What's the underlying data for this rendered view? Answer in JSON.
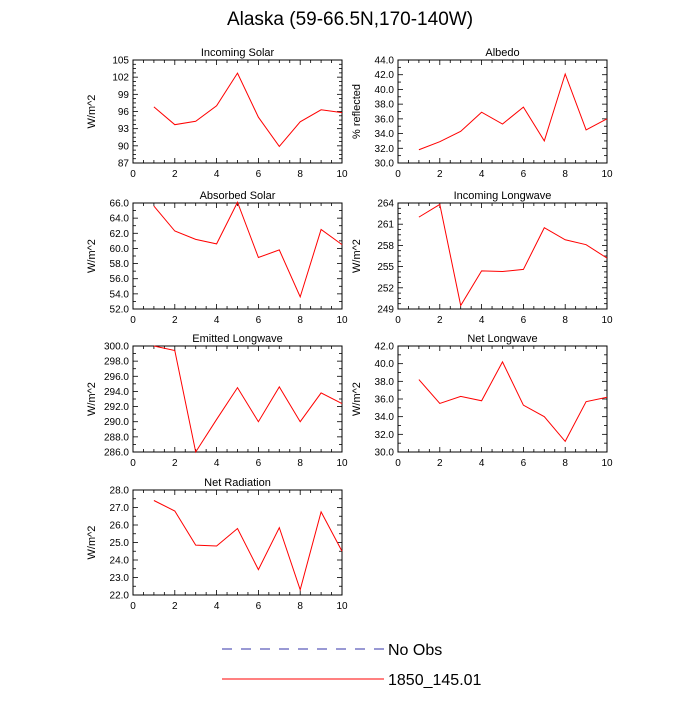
{
  "figure": {
    "title": "Alaska (59-66.5N,170-140W)"
  },
  "colors": {
    "model_line": "#ff0000",
    "obs_line": "#3333aa",
    "axis": "#000000"
  },
  "legend": {
    "placement": "bottom-center",
    "entries": [
      {
        "label": "No Obs",
        "style": "dashed",
        "color": "#3333aa"
      },
      {
        "label": "1850_145.01",
        "style": "solid",
        "color": "#ff0000"
      }
    ]
  },
  "chart_data": [
    {
      "type": "line",
      "title": "Incoming Solar",
      "xlabel": "",
      "ylabel": "W/m^2",
      "xlim": [
        0,
        10
      ],
      "xticks": [
        0,
        2,
        4,
        6,
        8,
        10
      ],
      "ylim": [
        87,
        105
      ],
      "yticks": [
        87,
        90,
        93,
        96,
        99,
        102,
        105
      ],
      "ytick_decimals": 0,
      "yminor": 4,
      "series": [
        {
          "name": "1850_145.01",
          "x": [
            1,
            2,
            3,
            4,
            5,
            6,
            7,
            8,
            9,
            10
          ],
          "values": [
            96.8,
            93.7,
            94.3,
            97.0,
            102.7,
            95.0,
            89.9,
            94.2,
            96.3,
            95.8
          ]
        }
      ]
    },
    {
      "type": "line",
      "title": "Albedo",
      "xlabel": "",
      "ylabel": "% reflected",
      "xlim": [
        0,
        10
      ],
      "xticks": [
        0,
        2,
        4,
        6,
        8,
        10
      ],
      "ylim": [
        30,
        44
      ],
      "yticks": [
        30,
        32,
        34,
        36,
        38,
        40,
        42,
        44
      ],
      "ytick_decimals": 1,
      "yminor": 2,
      "series": [
        {
          "name": "1850_145.01",
          "x": [
            1,
            2,
            3,
            4,
            5,
            6,
            7,
            8,
            9,
            10
          ],
          "values": [
            31.8,
            32.9,
            34.3,
            36.9,
            35.3,
            37.6,
            33.0,
            42.1,
            34.5,
            36.0
          ]
        }
      ]
    },
    {
      "type": "line",
      "title": "Absorbed Solar",
      "xlabel": "",
      "ylabel": "W/m^2",
      "xlim": [
        0,
        10
      ],
      "xticks": [
        0,
        2,
        4,
        6,
        8,
        10
      ],
      "ylim": [
        52,
        66
      ],
      "yticks": [
        52,
        54,
        56,
        58,
        60,
        62,
        64,
        66
      ],
      "ytick_decimals": 1,
      "yminor": 2,
      "series": [
        {
          "name": "1850_145.01",
          "x": [
            1,
            2,
            3,
            4,
            5,
            6,
            7,
            8,
            9,
            10
          ],
          "values": [
            65.6,
            62.3,
            61.2,
            60.6,
            66.1,
            58.8,
            59.8,
            53.6,
            62.5,
            60.5
          ]
        }
      ]
    },
    {
      "type": "line",
      "title": "Incoming Longwave",
      "xlabel": "",
      "ylabel": "W/m^2",
      "xlim": [
        0,
        10
      ],
      "xticks": [
        0,
        2,
        4,
        6,
        8,
        10
      ],
      "ylim": [
        249,
        264
      ],
      "yticks": [
        249,
        252,
        255,
        258,
        261,
        264
      ],
      "ytick_decimals": 0,
      "yminor": 4,
      "series": [
        {
          "name": "1850_145.01",
          "x": [
            1,
            2,
            3,
            4,
            5,
            6,
            7,
            8,
            9,
            10
          ],
          "values": [
            262.0,
            263.8,
            249.5,
            254.4,
            254.3,
            254.6,
            260.5,
            258.8,
            258.1,
            256.2
          ]
        }
      ]
    },
    {
      "type": "line",
      "title": "Emitted Longwave",
      "xlabel": "",
      "ylabel": "W/m^2",
      "xlim": [
        0,
        10
      ],
      "xticks": [
        0,
        2,
        4,
        6,
        8,
        10
      ],
      "ylim": [
        286,
        300
      ],
      "yticks": [
        286,
        288,
        290,
        292,
        294,
        296,
        298,
        300
      ],
      "ytick_decimals": 1,
      "yminor": 2,
      "series": [
        {
          "name": "1850_145.01",
          "x": [
            1,
            2,
            3,
            4,
            5,
            6,
            7,
            8,
            9,
            10
          ],
          "values": [
            300.0,
            299.4,
            286.0,
            290.3,
            294.5,
            290.0,
            294.6,
            290.0,
            293.8,
            292.4
          ]
        }
      ]
    },
    {
      "type": "line",
      "title": "Net Longwave",
      "xlabel": "",
      "ylabel": "W/m^2",
      "xlim": [
        0,
        10
      ],
      "xticks": [
        0,
        2,
        4,
        6,
        8,
        10
      ],
      "ylim": [
        30,
        42
      ],
      "yticks": [
        30,
        32,
        34,
        36,
        38,
        40,
        42
      ],
      "ytick_decimals": 1,
      "yminor": 2,
      "series": [
        {
          "name": "1850_145.01",
          "x": [
            1,
            2,
            3,
            4,
            5,
            6,
            7,
            8,
            9,
            10
          ],
          "values": [
            38.2,
            35.5,
            36.3,
            35.8,
            40.2,
            35.3,
            34.0,
            31.2,
            35.7,
            36.2
          ]
        }
      ]
    },
    {
      "type": "line",
      "title": "Net Radiation",
      "xlabel": "",
      "ylabel": "W/m^2",
      "xlim": [
        0,
        10
      ],
      "xticks": [
        0,
        2,
        4,
        6,
        8,
        10
      ],
      "ylim": [
        22,
        28
      ],
      "yticks": [
        22,
        23,
        24,
        25,
        26,
        27,
        28
      ],
      "ytick_decimals": 1,
      "yminor": 2,
      "series": [
        {
          "name": "1850_145.01",
          "x": [
            1,
            2,
            3,
            4,
            5,
            6,
            7,
            8,
            9,
            10
          ],
          "values": [
            27.4,
            26.8,
            24.85,
            24.8,
            25.8,
            23.45,
            25.85,
            22.3,
            26.75,
            24.5
          ]
        }
      ]
    }
  ]
}
